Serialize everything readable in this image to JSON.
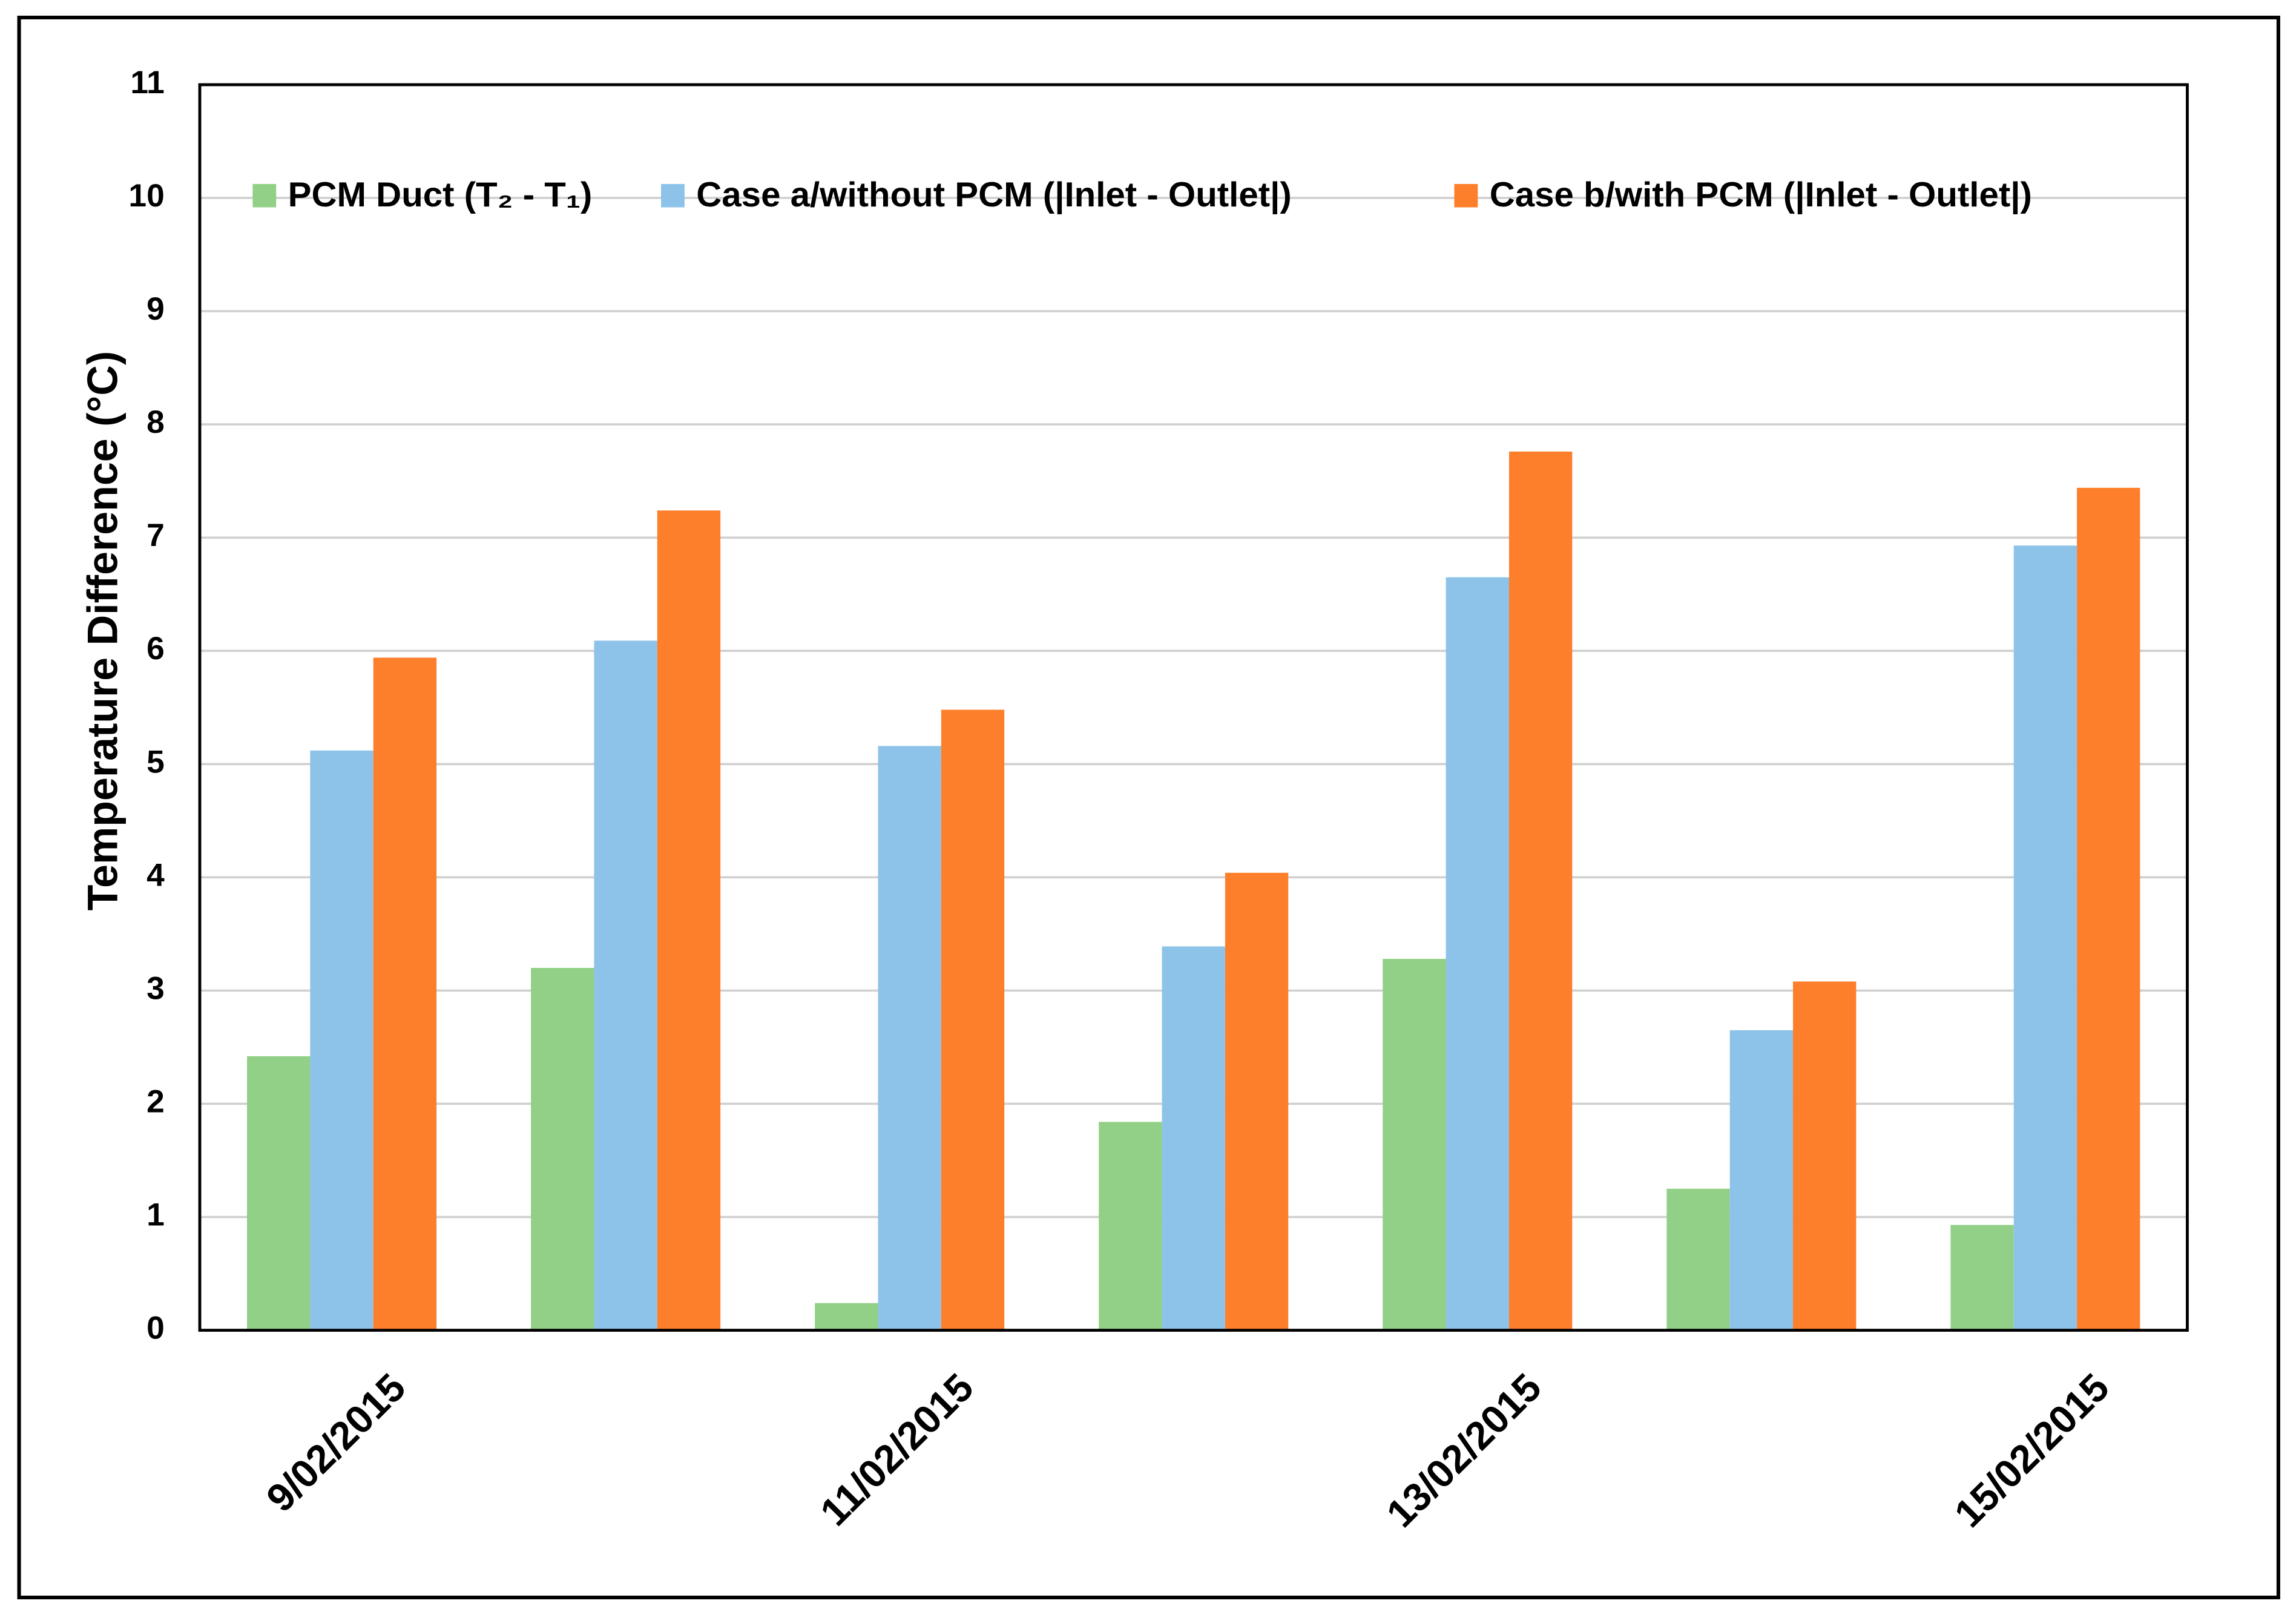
{
  "chart_data": {
    "type": "bar",
    "y_label": "Temperature Difference (°C)",
    "categories": [
      "9/02/2015",
      null,
      "11/02/2015",
      null,
      "13/02/2015",
      null,
      "15/02/2015"
    ],
    "series": [
      {
        "name": "PCM Duct (T₂ - T₁)",
        "color": "#92d087",
        "values": [
          2.42,
          3.2,
          0.24,
          1.84,
          3.28,
          1.25,
          0.93
        ]
      },
      {
        "name": "Case a/without PCM (|Inlet - Outlet|)",
        "color": "#8dc3e8",
        "values": [
          5.12,
          6.09,
          5.16,
          3.39,
          6.65,
          2.65,
          6.93
        ]
      },
      {
        "name": "Case b/with PCM (|Inlet - Outlet|)",
        "color": "#fd7f2c",
        "values": [
          5.94,
          7.24,
          5.48,
          4.04,
          7.76,
          3.08,
          7.44
        ]
      }
    ],
    "ylim": [
      0,
      11
    ],
    "yticks": [
      0,
      1,
      2,
      3,
      4,
      5,
      6,
      7,
      8,
      9,
      10,
      11
    ],
    "grid": true,
    "legend": "top"
  }
}
